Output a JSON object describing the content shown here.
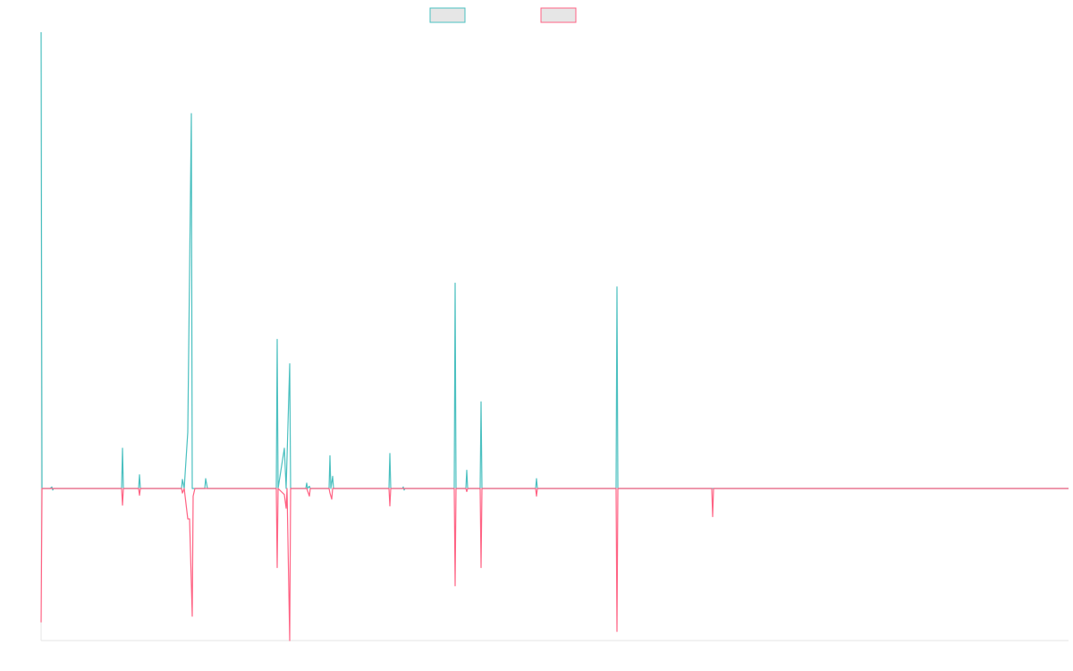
{
  "chart_data": {
    "type": "line",
    "title": "",
    "xlabel": "",
    "ylabel": "",
    "legend_position": "top-center",
    "grid": false,
    "xlim": [
      0,
      1149
    ],
    "ylim": [
      -100,
      300
    ],
    "series": [
      {
        "color": "#4bc0c0",
        "fill": "#e6e6e6",
        "points": [
          [
            0,
            300
          ],
          [
            1,
            0
          ],
          [
            10,
            0
          ],
          [
            12,
            1
          ],
          [
            13,
            -1
          ],
          [
            14,
            0
          ],
          [
            90,
            0
          ],
          [
            91,
            26.5
          ],
          [
            92,
            0
          ],
          [
            109,
            0
          ],
          [
            110,
            9
          ],
          [
            111,
            0
          ],
          [
            157,
            0
          ],
          [
            158,
            6
          ],
          [
            160,
            0
          ],
          [
            164,
            37
          ],
          [
            168,
            246.5
          ],
          [
            169,
            0
          ],
          [
            183,
            0
          ],
          [
            184,
            6.5
          ],
          [
            186,
            0
          ],
          [
            263,
            0
          ],
          [
            264,
            98
          ],
          [
            265,
            0
          ],
          [
            272,
            26.5
          ],
          [
            274,
            0
          ],
          [
            278,
            82
          ],
          [
            279,
            0
          ],
          [
            296,
            0
          ],
          [
            297,
            3.5
          ],
          [
            298,
            0
          ],
          [
            300,
            1.5
          ],
          [
            301,
            0
          ],
          [
            322,
            0
          ],
          [
            323,
            21.5
          ],
          [
            324,
            0
          ],
          [
            326,
            8
          ],
          [
            327,
            0
          ],
          [
            389,
            0
          ],
          [
            390,
            23
          ],
          [
            391,
            0
          ],
          [
            404,
            0
          ],
          [
            405,
            1
          ],
          [
            406,
            -1
          ],
          [
            407,
            0
          ],
          [
            462,
            0
          ],
          [
            463,
            135
          ],
          [
            464,
            0
          ],
          [
            475,
            0
          ],
          [
            476,
            12
          ],
          [
            477,
            0
          ],
          [
            491,
            0
          ],
          [
            492,
            57
          ],
          [
            493,
            0
          ],
          [
            553,
            0
          ],
          [
            554,
            6.5
          ],
          [
            555,
            0
          ],
          [
            643,
            0
          ],
          [
            644,
            132.5
          ],
          [
            645,
            0
          ],
          [
            750,
            0
          ],
          [
            1149,
            0
          ]
        ]
      },
      {
        "color": "#ff6384",
        "fill": "#e6e6e6",
        "points": [
          [
            0,
            -88
          ],
          [
            1,
            0
          ],
          [
            90,
            0
          ],
          [
            91,
            -11
          ],
          [
            92,
            0
          ],
          [
            109,
            0
          ],
          [
            110,
            -4.5
          ],
          [
            111,
            0
          ],
          [
            157,
            0
          ],
          [
            158,
            -3
          ],
          [
            160,
            0
          ],
          [
            164,
            -20
          ],
          [
            166,
            -20
          ],
          [
            169,
            -84
          ],
          [
            170,
            -5
          ],
          [
            172,
            0
          ],
          [
            263,
            0
          ],
          [
            264,
            -52
          ],
          [
            265,
            0
          ],
          [
            272,
            -4
          ],
          [
            274,
            -13
          ],
          [
            275,
            0
          ],
          [
            278,
            -100
          ],
          [
            279,
            0
          ],
          [
            297,
            0
          ],
          [
            300,
            -5
          ],
          [
            301,
            0
          ],
          [
            322,
            0
          ],
          [
            323,
            -3
          ],
          [
            325,
            -7
          ],
          [
            326,
            0
          ],
          [
            389,
            0
          ],
          [
            390,
            -11.5
          ],
          [
            391,
            0
          ],
          [
            462,
            0
          ],
          [
            463,
            -64
          ],
          [
            464,
            0
          ],
          [
            475,
            0
          ],
          [
            476,
            -2
          ],
          [
            477,
            0
          ],
          [
            491,
            0
          ],
          [
            492,
            -52
          ],
          [
            493,
            0
          ],
          [
            553,
            0
          ],
          [
            554,
            -5
          ],
          [
            555,
            0
          ],
          [
            643,
            0
          ],
          [
            644,
            -94
          ],
          [
            645,
            0
          ],
          [
            750,
            0
          ],
          [
            751,
            -18.5
          ],
          [
            752,
            0
          ],
          [
            1149,
            0
          ]
        ]
      }
    ]
  }
}
